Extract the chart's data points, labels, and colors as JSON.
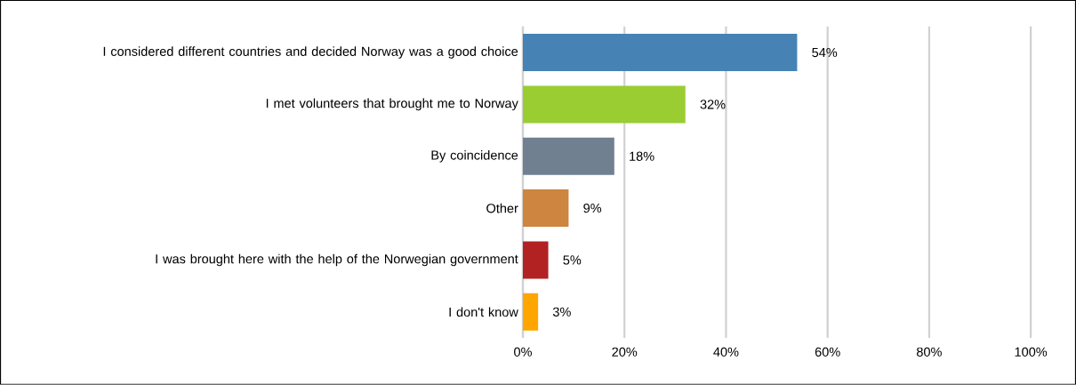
{
  "chart_data": {
    "type": "bar",
    "orientation": "horizontal",
    "categories": [
      "I considered different countries and decided Norway was a good choice",
      "I met volunteers that brought me to Norway",
      "By coincidence",
      "Other",
      "I was brought here with the help of the Norwegian government",
      "I don't know"
    ],
    "values": [
      54,
      32,
      18,
      9,
      5,
      3
    ],
    "value_labels": [
      "54%",
      "32%",
      "18%",
      "9%",
      "5%",
      "3%"
    ],
    "colors": [
      "#4682b4",
      "#9acd32",
      "#708090",
      "#cd853f",
      "#b22222",
      "#ffa500"
    ],
    "xlim": [
      0,
      100
    ],
    "xticks": [
      {
        "value": 0,
        "label": "0%"
      },
      {
        "value": 20,
        "label": "20%"
      },
      {
        "value": 40,
        "label": "40%"
      },
      {
        "value": 60,
        "label": "60%"
      },
      {
        "value": 80,
        "label": "80%"
      },
      {
        "value": 100,
        "label": "100%"
      }
    ],
    "grid": "x"
  }
}
